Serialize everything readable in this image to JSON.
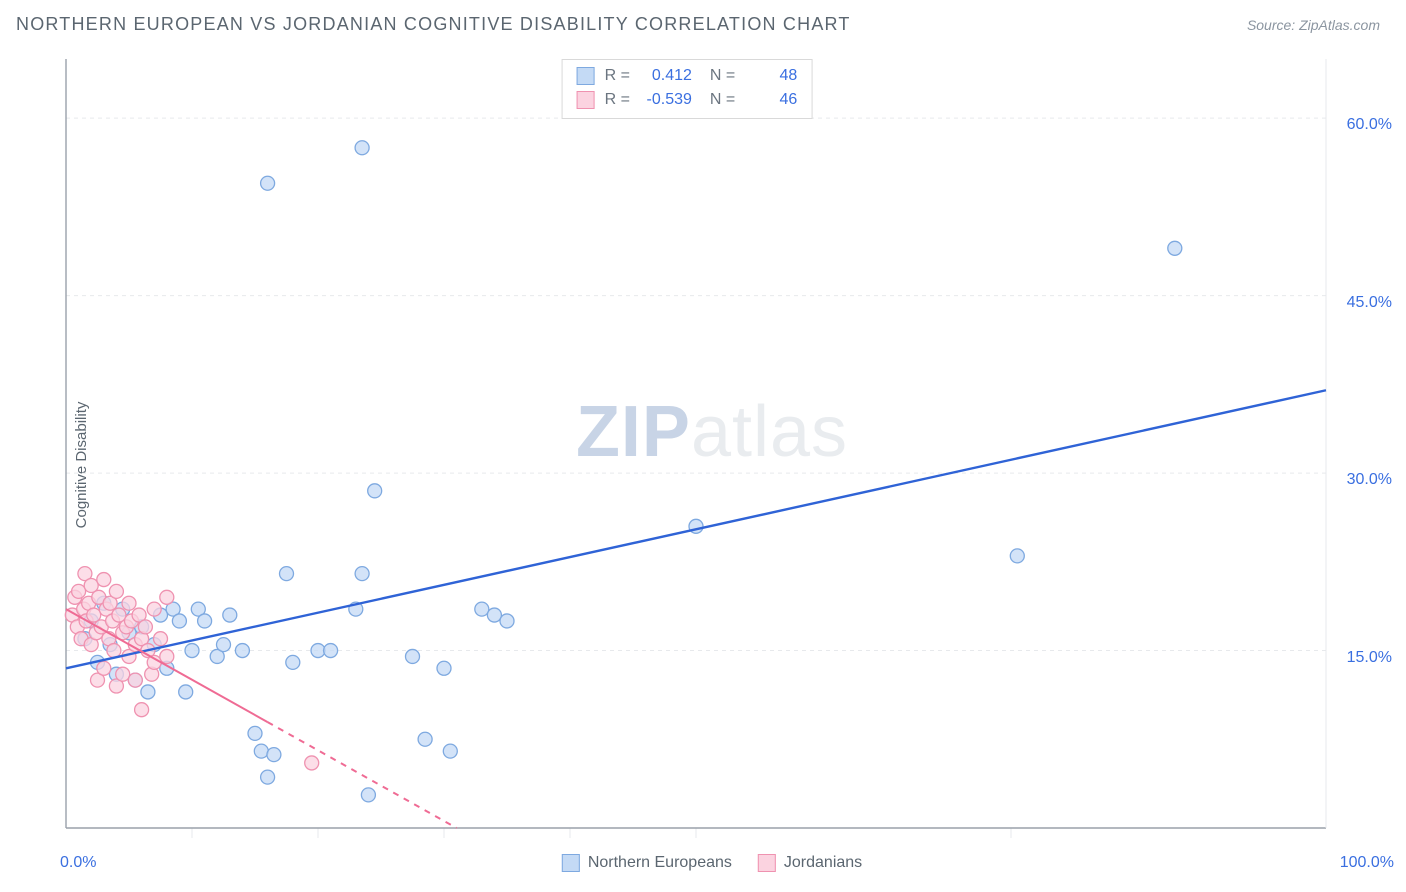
{
  "header": {
    "title": "NORTHERN EUROPEAN VS JORDANIAN COGNITIVE DISABILITY CORRELATION CHART",
    "source": "Source: ZipAtlas.com"
  },
  "ylabel": "Cognitive Disability",
  "watermark": {
    "zip": "ZIP",
    "atlas": "atlas"
  },
  "legend_top": {
    "rows": [
      {
        "swatch_fill": "#c4daf5",
        "swatch_stroke": "#7ea9e0",
        "r_label": "R =",
        "r_value": "0.412",
        "n_label": "N =",
        "n_value": "48"
      },
      {
        "swatch_fill": "#fbd3e0",
        "swatch_stroke": "#ef92b0",
        "r_label": "R =",
        "r_value": "-0.539",
        "n_label": "N =",
        "n_value": "46"
      }
    ]
  },
  "legend_bottom": {
    "items": [
      {
        "swatch_fill": "#c4daf5",
        "swatch_stroke": "#7ea9e0",
        "label": "Northern Europeans"
      },
      {
        "swatch_fill": "#fbd3e0",
        "swatch_stroke": "#ef92b0",
        "label": "Jordanians"
      }
    ]
  },
  "chart": {
    "type": "scatter",
    "background": "#ffffff",
    "grid_color": "#e7e9ec",
    "axis_dark": "#9aa1aa",
    "xlim": [
      0,
      100
    ],
    "ylim": [
      0,
      65
    ],
    "ytick_values": [
      15,
      30,
      45,
      60
    ],
    "ytick_labels": [
      "15.0%",
      "30.0%",
      "45.0%",
      "60.0%"
    ],
    "xtick_minor": [
      10,
      20,
      30,
      40,
      50,
      75
    ],
    "x_axis_labels": [
      {
        "text": "0.0%",
        "x": 0
      },
      {
        "text": "100.0%",
        "x": 100
      }
    ],
    "series": [
      {
        "name": "Northern Europeans",
        "marker_fill": "#c4daf5",
        "marker_stroke": "#7ea9e0",
        "marker_r": 7,
        "trend_color": "#2f63d6",
        "trend_width": 2.4,
        "trend": {
          "x1": 0,
          "y1": 13.5,
          "x2": 100,
          "y2": 37.0,
          "dashed": false
        },
        "points": [
          [
            1.5,
            16
          ],
          [
            2,
            17.5
          ],
          [
            2.5,
            14
          ],
          [
            3,
            19
          ],
          [
            3.5,
            15.5
          ],
          [
            4,
            13
          ],
          [
            4.5,
            18.5
          ],
          [
            5,
            16.5
          ],
          [
            5.5,
            12.5
          ],
          [
            6,
            17
          ],
          [
            6.5,
            11.5
          ],
          [
            7,
            15.5
          ],
          [
            7.5,
            18
          ],
          [
            8,
            13.5
          ],
          [
            8.5,
            18.5
          ],
          [
            9,
            17.5
          ],
          [
            9.5,
            11.5
          ],
          [
            10,
            15
          ],
          [
            10.5,
            18.5
          ],
          [
            11,
            17.5
          ],
          [
            12,
            14.5
          ],
          [
            12.5,
            15.5
          ],
          [
            13,
            18
          ],
          [
            14,
            15
          ],
          [
            15,
            8
          ],
          [
            15.5,
            6.5
          ],
          [
            16,
            4.3
          ],
          [
            16.5,
            6.2
          ],
          [
            17.5,
            21.5
          ],
          [
            18,
            14
          ],
          [
            20,
            15
          ],
          [
            21,
            15
          ],
          [
            23,
            18.5
          ],
          [
            23.5,
            21.5
          ],
          [
            24,
            2.8
          ],
          [
            24.5,
            28.5
          ],
          [
            27.5,
            14.5
          ],
          [
            28.5,
            7.5
          ],
          [
            30,
            13.5
          ],
          [
            30.5,
            6.5
          ],
          [
            33,
            18.5
          ],
          [
            34,
            18
          ],
          [
            35,
            17.5
          ],
          [
            50,
            25.5
          ],
          [
            23.5,
            57.5
          ],
          [
            16,
            54.5
          ],
          [
            75.5,
            23
          ],
          [
            88,
            49
          ]
        ]
      },
      {
        "name": "Jordanians",
        "marker_fill": "#fbd3e0",
        "marker_stroke": "#ef92b0",
        "marker_r": 7,
        "trend_color": "#ef6b94",
        "trend_width": 2.0,
        "trend": {
          "x1": 0,
          "y1": 18.5,
          "x2": 31,
          "y2": 0,
          "dashed_after_x": 16
        },
        "points": [
          [
            0.5,
            18
          ],
          [
            0.7,
            19.5
          ],
          [
            0.9,
            17
          ],
          [
            1,
            20
          ],
          [
            1.2,
            16
          ],
          [
            1.4,
            18.5
          ],
          [
            1.5,
            21.5
          ],
          [
            1.6,
            17.5
          ],
          [
            1.8,
            19
          ],
          [
            2,
            15.5
          ],
          [
            2,
            20.5
          ],
          [
            2.2,
            18
          ],
          [
            2.4,
            16.5
          ],
          [
            2.5,
            12.5
          ],
          [
            2.6,
            19.5
          ],
          [
            2.8,
            17
          ],
          [
            3,
            21
          ],
          [
            3,
            13.5
          ],
          [
            3.2,
            18.5
          ],
          [
            3.4,
            16
          ],
          [
            3.5,
            19
          ],
          [
            3.7,
            17.5
          ],
          [
            3.8,
            15
          ],
          [
            4,
            20
          ],
          [
            4,
            12
          ],
          [
            4.2,
            18
          ],
          [
            4.5,
            16.5
          ],
          [
            4.5,
            13
          ],
          [
            4.8,
            17
          ],
          [
            5,
            19
          ],
          [
            5,
            14.5
          ],
          [
            5.2,
            17.5
          ],
          [
            5.5,
            15.5
          ],
          [
            5.5,
            12.5
          ],
          [
            5.8,
            18
          ],
          [
            6,
            16
          ],
          [
            6,
            10
          ],
          [
            6.3,
            17
          ],
          [
            6.5,
            15
          ],
          [
            6.8,
            13
          ],
          [
            7,
            18.5
          ],
          [
            7,
            14
          ],
          [
            7.5,
            16
          ],
          [
            8,
            19.5
          ],
          [
            8,
            14.5
          ],
          [
            19.5,
            5.5
          ]
        ]
      }
    ]
  }
}
